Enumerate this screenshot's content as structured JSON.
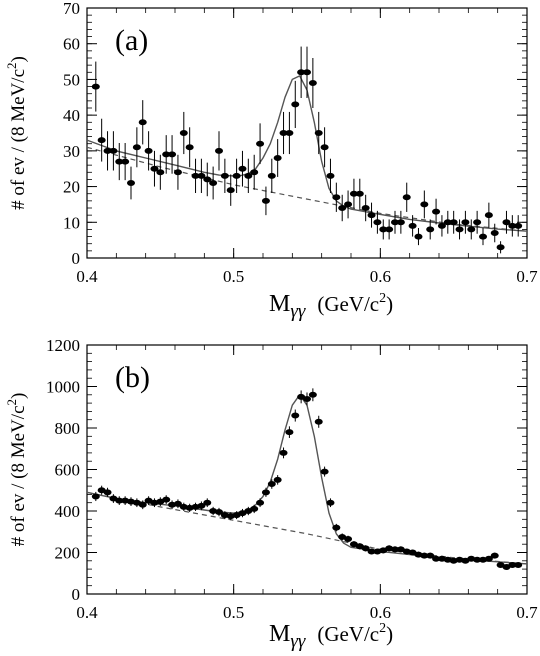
{
  "chart_data": [
    {
      "type": "scatter",
      "panel_label": "(a)",
      "xlabel": {
        "main": "M",
        "sub": "γγ",
        "units_pre": "(GeV/c",
        "units_sup": "2",
        "units_post": ")"
      },
      "ylabel": {
        "pre": "# of ev / (8 MeV/c",
        "sup": "2",
        "post": ")"
      },
      "xlim": [
        0.4,
        0.7
      ],
      "ylim": [
        0,
        70
      ],
      "x_ticks": [
        {
          "v": 0.4,
          "label": "0.4"
        },
        {
          "v": 0.5,
          "label": "0.5"
        },
        {
          "v": 0.6,
          "label": "0.6"
        },
        {
          "v": 0.7,
          "label": "0.7"
        }
      ],
      "y_ticks": [
        {
          "v": 0,
          "label": "0"
        },
        {
          "v": 10,
          "label": "10"
        },
        {
          "v": 20,
          "label": "20"
        },
        {
          "v": 30,
          "label": "30"
        },
        {
          "v": 40,
          "label": "40"
        },
        {
          "v": 50,
          "label": "50"
        },
        {
          "v": 60,
          "label": "60"
        },
        {
          "v": 70,
          "label": "70"
        }
      ],
      "x_minor_step": 0.02,
      "y_minor_step": 2,
      "grid": false,
      "points": {
        "x": [
          0.406,
          0.41,
          0.414,
          0.418,
          0.422,
          0.426,
          0.43,
          0.434,
          0.438,
          0.442,
          0.446,
          0.45,
          0.454,
          0.458,
          0.462,
          0.466,
          0.47,
          0.474,
          0.478,
          0.482,
          0.486,
          0.49,
          0.494,
          0.498,
          0.502,
          0.506,
          0.51,
          0.514,
          0.518,
          0.522,
          0.526,
          0.53,
          0.534,
          0.538,
          0.542,
          0.546,
          0.55,
          0.554,
          0.558,
          0.562,
          0.566,
          0.57,
          0.574,
          0.578,
          0.582,
          0.586,
          0.59,
          0.594,
          0.598,
          0.602,
          0.606,
          0.61,
          0.614,
          0.618,
          0.622,
          0.626,
          0.63,
          0.634,
          0.638,
          0.642,
          0.646,
          0.65,
          0.654,
          0.658,
          0.662,
          0.666,
          0.67,
          0.674,
          0.678,
          0.682,
          0.686,
          0.69,
          0.694
        ],
        "y": [
          48,
          33,
          30,
          30,
          27,
          27,
          21,
          31,
          38,
          30,
          25,
          24,
          29,
          29,
          24,
          35,
          31,
          23,
          23,
          22,
          21,
          30,
          23,
          19,
          23,
          25,
          23,
          24,
          32,
          16,
          23,
          28,
          35,
          35,
          43,
          52,
          52,
          49,
          35,
          31,
          23,
          17,
          14,
          15,
          18,
          18,
          14,
          12,
          10,
          8,
          8,
          10,
          10,
          17,
          9,
          6,
          15,
          8,
          13,
          9,
          10,
          10,
          8,
          10,
          8,
          10,
          6,
          12,
          7,
          3,
          10,
          9,
          9
        ],
        "yerr": [
          7,
          6,
          5.5,
          5.5,
          5.2,
          5.2,
          4.6,
          5.6,
          6.2,
          5.5,
          5,
          4.9,
          5.4,
          5.4,
          4.9,
          5.9,
          5.6,
          4.8,
          4.8,
          4.7,
          4.6,
          5.5,
          4.8,
          4.4,
          4.8,
          5,
          4.8,
          4.9,
          5.7,
          4,
          4.8,
          5.3,
          5.9,
          5.9,
          6.6,
          7.2,
          7.2,
          7,
          5.9,
          5.6,
          4.8,
          4.1,
          3.7,
          3.9,
          4.2,
          4.2,
          3.7,
          3.5,
          3.2,
          2.8,
          2.8,
          3.2,
          3.2,
          4.1,
          3,
          2.4,
          3.9,
          2.8,
          3.6,
          3,
          3.2,
          3.2,
          2.8,
          3.2,
          2.8,
          3.2,
          2.4,
          3.5,
          2.6,
          1.7,
          3.2,
          3,
          3
        ]
      },
      "fit_total": {
        "x": [
          0.4,
          0.42,
          0.44,
          0.46,
          0.48,
          0.49,
          0.5,
          0.505,
          0.51,
          0.515,
          0.52,
          0.525,
          0.53,
          0.535,
          0.54,
          0.545,
          0.55,
          0.555,
          0.56,
          0.565,
          0.57,
          0.575,
          0.58,
          0.6,
          0.62,
          0.64,
          0.66,
          0.68,
          0.7
        ],
        "y": [
          33,
          30,
          28,
          26,
          24,
          23.2,
          23,
          23.1,
          23.6,
          25,
          28,
          32,
          38,
          45,
          50,
          51,
          47,
          38,
          27,
          19.5,
          16,
          14.5,
          13.7,
          12.2,
          10.8,
          9.8,
          8.9,
          8.1,
          7.5
        ]
      },
      "fit_background": {
        "x": [
          0.4,
          0.45,
          0.5,
          0.55,
          0.6,
          0.65,
          0.7
        ],
        "y": [
          31,
          25.5,
          20.5,
          16.5,
          12.5,
          9.5,
          7.5
        ]
      }
    },
    {
      "type": "scatter",
      "panel_label": "(b)",
      "xlabel": {
        "main": "M",
        "sub": "γγ",
        "units_pre": "(GeV/c",
        "units_sup": "2",
        "units_post": ")"
      },
      "ylabel": {
        "pre": "# of ev / (8 MeV/c",
        "sup": "2",
        "post": ")"
      },
      "xlim": [
        0.4,
        0.7
      ],
      "ylim": [
        0,
        1200
      ],
      "x_ticks": [
        {
          "v": 0.4,
          "label": "0.4"
        },
        {
          "v": 0.5,
          "label": "0.5"
        },
        {
          "v": 0.6,
          "label": "0.6"
        },
        {
          "v": 0.7,
          "label": "0.7"
        }
      ],
      "y_ticks": [
        {
          "v": 0,
          "label": "0"
        },
        {
          "v": 200,
          "label": "200"
        },
        {
          "v": 400,
          "label": "400"
        },
        {
          "v": 600,
          "label": "600"
        },
        {
          "v": 800,
          "label": "800"
        },
        {
          "v": 1000,
          "label": "1000"
        },
        {
          "v": 1200,
          "label": "1200"
        }
      ],
      "x_minor_step": 0.02,
      "y_minor_step": 40,
      "grid": false,
      "points": {
        "x": [
          0.406,
          0.41,
          0.414,
          0.418,
          0.422,
          0.426,
          0.43,
          0.434,
          0.438,
          0.442,
          0.446,
          0.45,
          0.454,
          0.458,
          0.462,
          0.466,
          0.47,
          0.474,
          0.478,
          0.482,
          0.486,
          0.49,
          0.494,
          0.498,
          0.502,
          0.506,
          0.51,
          0.514,
          0.518,
          0.522,
          0.526,
          0.53,
          0.534,
          0.538,
          0.542,
          0.546,
          0.55,
          0.554,
          0.558,
          0.562,
          0.566,
          0.57,
          0.574,
          0.578,
          0.582,
          0.586,
          0.59,
          0.594,
          0.598,
          0.602,
          0.606,
          0.61,
          0.614,
          0.618,
          0.622,
          0.626,
          0.63,
          0.634,
          0.638,
          0.642,
          0.646,
          0.65,
          0.654,
          0.658,
          0.662,
          0.666,
          0.67,
          0.674,
          0.678,
          0.682,
          0.686,
          0.69,
          0.694
        ],
        "y": [
          470,
          500,
          490,
          460,
          450,
          450,
          445,
          440,
          430,
          450,
          440,
          445,
          455,
          430,
          435,
          420,
          415,
          420,
          425,
          440,
          400,
          395,
          380,
          375,
          380,
          390,
          400,
          410,
          440,
          490,
          530,
          550,
          680,
          780,
          860,
          950,
          940,
          960,
          830,
          590,
          440,
          320,
          275,
          265,
          240,
          230,
          220,
          205,
          205,
          210,
          220,
          215,
          215,
          205,
          200,
          190,
          185,
          185,
          170,
          170,
          165,
          160,
          165,
          160,
          170,
          165,
          165,
          170,
          185,
          140,
          130,
          140,
          140
        ],
        "yerr": [
          22,
          22,
          22,
          21,
          21,
          21,
          21,
          21,
          21,
          21,
          21,
          21,
          21,
          21,
          21,
          20,
          20,
          20,
          21,
          21,
          20,
          20,
          19,
          19,
          19,
          20,
          20,
          20,
          21,
          22,
          23,
          23,
          26,
          28,
          29,
          31,
          31,
          31,
          29,
          24,
          21,
          18,
          17,
          16,
          15,
          15,
          15,
          14,
          14,
          14,
          15,
          15,
          15,
          14,
          14,
          14,
          14,
          14,
          13,
          13,
          13,
          13,
          13,
          13,
          13,
          13,
          13,
          13,
          14,
          12,
          11,
          12,
          12
        ]
      },
      "fit_total": {
        "x": [
          0.4,
          0.42,
          0.44,
          0.46,
          0.48,
          0.49,
          0.5,
          0.505,
          0.51,
          0.515,
          0.52,
          0.525,
          0.53,
          0.535,
          0.54,
          0.545,
          0.55,
          0.555,
          0.56,
          0.565,
          0.57,
          0.575,
          0.58,
          0.6,
          0.62,
          0.64,
          0.66,
          0.68,
          0.7
        ],
        "y": [
          490,
          460,
          440,
          425,
          405,
          395,
          390,
          395,
          405,
          430,
          470,
          540,
          650,
          790,
          910,
          960,
          910,
          760,
          560,
          390,
          290,
          245,
          225,
          205,
          190,
          175,
          165,
          155,
          145
        ]
      },
      "fit_background": {
        "x": [
          0.4,
          0.45,
          0.5,
          0.55,
          0.6,
          0.65,
          0.7
        ],
        "y": [
          490,
          420,
          355,
          290,
          215,
          175,
          145
        ]
      }
    }
  ]
}
